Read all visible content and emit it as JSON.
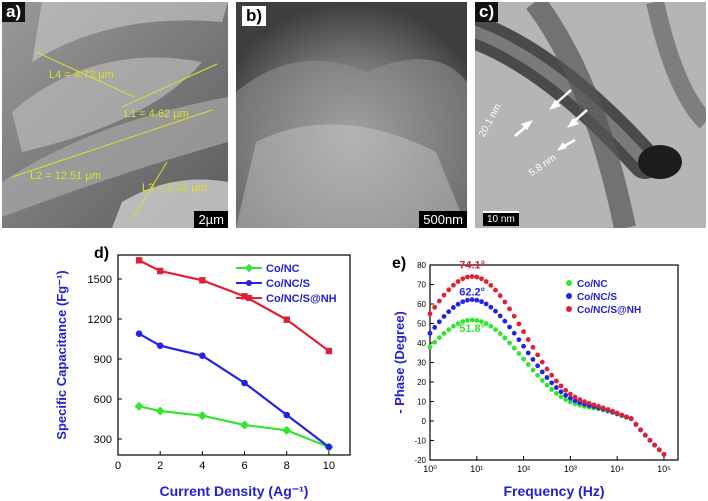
{
  "panel_a": {
    "label": "a)",
    "measurements": [
      "L4 = 4.72 µm",
      "L1 = 4.62 µm",
      "L2 = 12.51 µm",
      "L3 = 2.22 µm"
    ],
    "scale_bar": "2µm"
  },
  "panel_b": {
    "label": "b)",
    "scale_bar": "500nm"
  },
  "panel_c": {
    "label": "c)",
    "annotations": [
      "20.1 nm",
      "5.8 nm"
    ],
    "scale_bar": "10 nm"
  },
  "colors": {
    "green": "#33e433",
    "blue": "#2323e6",
    "red": "#e02035",
    "axis_label": "#1f1fd6",
    "annot_yellow": "#d8e02c"
  },
  "chart_data": [
    {
      "label": "d)",
      "type": "line",
      "xlabel": "Current Density (Ag⁻¹)",
      "ylabel": "Specific Capacitance (Fg⁻¹)",
      "xlim": [
        0,
        11
      ],
      "ylim": [
        180,
        1680
      ],
      "xticks": [
        0,
        2,
        4,
        6,
        8,
        10
      ],
      "yticks": [
        300,
        600,
        900,
        1200,
        1500
      ],
      "legend_position": "top-right",
      "series": [
        {
          "name": "Co/NC",
          "color": "#33e433",
          "x": [
            1,
            2,
            4,
            6,
            8,
            10
          ],
          "y": [
            545,
            510,
            475,
            405,
            365,
            240
          ]
        },
        {
          "name": "Co/NC/S",
          "color": "#2323e6",
          "x": [
            1,
            2,
            4,
            6,
            8,
            10
          ],
          "y": [
            1090,
            1000,
            925,
            720,
            480,
            240
          ]
        },
        {
          "name": "Co/NC/S@NH",
          "color": "#e02035",
          "x": [
            1,
            2,
            4,
            6,
            8,
            10
          ],
          "y": [
            1640,
            1560,
            1490,
            1370,
            1195,
            960
          ]
        }
      ]
    },
    {
      "label": "e)",
      "type": "scatter",
      "xlabel": "Frequency (Hz)",
      "ylabel": "- Phase (Degree)",
      "xscale": "log",
      "xlim_log10": [
        0,
        5.3
      ],
      "ylim": [
        -20,
        80
      ],
      "xticks_log10": [
        0,
        1,
        2,
        3,
        4,
        5
      ],
      "xtick_labels": [
        "10⁰",
        "10¹",
        "10²",
        "10³",
        "10⁴",
        "10⁵"
      ],
      "yticks": [
        -20,
        -10,
        0,
        10,
        20,
        30,
        40,
        50,
        60,
        70,
        80
      ],
      "legend_position": "top-right",
      "annotations": [
        {
          "text": "74.1°",
          "color": "#e02035"
        },
        {
          "text": "62.2°",
          "color": "#2323e6"
        },
        {
          "text": "51.8°",
          "color": "#33e433"
        }
      ],
      "series": [
        {
          "name": "Co/NC",
          "color": "#33e433",
          "peak_deg": 51.8,
          "start_deg": 38
        },
        {
          "name": "Co/NC/S",
          "color": "#2323e6",
          "peak_deg": 62.2,
          "start_deg": 45
        },
        {
          "name": "Co/NC/S@NH",
          "color": "#e02035",
          "peak_deg": 74.1,
          "start_deg": 55
        }
      ]
    }
  ]
}
